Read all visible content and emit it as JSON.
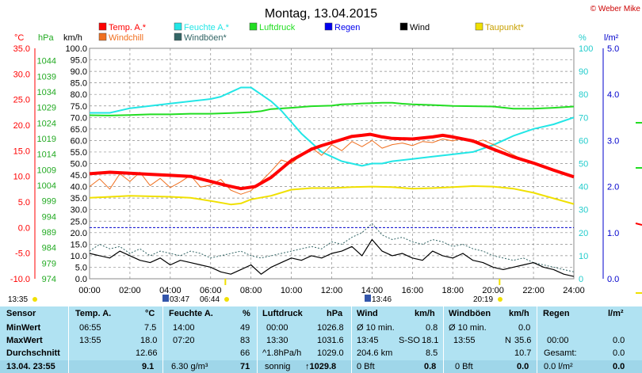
{
  "title": "Montag, 13.04.2015",
  "copyright": "© Weber Mike",
  "legend": [
    {
      "label": "Temp. A.*",
      "color": "#ff0000"
    },
    {
      "label": "Feuchte A.*",
      "color": "#22e6e6"
    },
    {
      "label": "Luftdruck",
      "color": "#22dd22"
    },
    {
      "label": "Regen",
      "color": "#0000ee"
    },
    {
      "label": "Wind",
      "color": "#000000"
    },
    {
      "label": "Taupunkt*",
      "color": "#f0e000"
    },
    {
      "label": "Windchill",
      "color": "#f07020"
    },
    {
      "label": "Windböen*",
      "color": "#336666"
    }
  ],
  "axis_units": {
    "temp": "°C",
    "pressure": "hPa",
    "wind": "km/h",
    "humidity": "%",
    "rain": "l/m²"
  },
  "chart_data": {
    "type": "line",
    "xlim": [
      0,
      24
    ],
    "x_ticks": [
      "00:00",
      "02:00",
      "04:00",
      "06:00",
      "08:00",
      "10:00",
      "12:00",
      "14:00",
      "16:00",
      "18:00",
      "20:00",
      "22:00",
      "24:00"
    ],
    "temp_axis": {
      "ylim": [
        -10,
        35
      ],
      "ticks": [
        "35.0",
        "30.0",
        "25.0",
        "20.0",
        "15.0",
        "10.0",
        "5.0",
        "0.0",
        "-5.0",
        "-10.0"
      ]
    },
    "pressure_axis": {
      "ylim": [
        974,
        1048
      ],
      "ticks": [
        "1044",
        "1039",
        "1034",
        "1029",
        "1024",
        "1019",
        "1014",
        "1009",
        "1004",
        "999",
        "994",
        "989",
        "984",
        "979",
        "974"
      ]
    },
    "wind_axis": {
      "ylim": [
        0,
        100
      ],
      "ticks": [
        "100.0",
        "95.0",
        "90.0",
        "85.0",
        "80.0",
        "75.0",
        "70.0",
        "65.0",
        "60.0",
        "55.0",
        "50.0",
        "45.0",
        "40.0",
        "35.0",
        "30.0",
        "25.0",
        "20.0",
        "15.0",
        "10.0",
        "5.0",
        "0.0"
      ]
    },
    "humidity_axis": {
      "ylim": [
        0,
        100
      ],
      "ticks": [
        "100",
        "90",
        "80",
        "70",
        "60",
        "50",
        "40",
        "30",
        "20",
        "10",
        "0"
      ]
    },
    "rain_axis": {
      "ylim": [
        0,
        5
      ],
      "ticks": [
        "5.0",
        "4.0",
        "3.0",
        "2.0",
        "1.0",
        "0.0"
      ]
    },
    "series": [
      {
        "name": "Temp. A.*",
        "axis": "temp",
        "color": "#ff0000",
        "x": [
          0,
          1,
          2,
          3,
          4,
          5,
          6,
          6.7,
          7.5,
          8.2,
          9,
          10,
          11,
          11.5,
          12,
          12.5,
          13,
          13.5,
          13.9,
          14.5,
          15,
          16,
          17,
          17.5,
          18,
          19,
          20,
          21,
          22,
          23,
          24
        ],
        "y": [
          10.5,
          10.8,
          10.6,
          10.4,
          10.2,
          10.0,
          9.0,
          8.3,
          7.6,
          8.0,
          9.8,
          13.1,
          15.3,
          16.0,
          16.6,
          17.2,
          17.8,
          18.0,
          18.2,
          17.7,
          17.4,
          17.3,
          17.7,
          18.0,
          17.7,
          16.9,
          15.3,
          13.8,
          12.6,
          11.2,
          9.9
        ]
      },
      {
        "name": "Windchill",
        "axis": "temp",
        "color": "#f07020",
        "x": [
          0,
          0.5,
          1,
          1.5,
          2,
          2.5,
          3,
          3.5,
          4,
          4.5,
          5,
          5.5,
          6,
          6.5,
          7,
          7.5,
          8,
          8.5,
          9,
          9.5,
          10,
          10.5,
          11,
          11.5,
          12,
          12.5,
          13,
          13.5,
          14,
          14.5,
          15,
          15.5,
          16,
          16.5,
          17,
          17.5,
          18,
          18.5,
          19,
          19.5,
          20,
          20.5,
          21,
          21.5,
          22
        ],
        "y": [
          8.0,
          9.5,
          7.5,
          10.5,
          9.0,
          10.8,
          8.2,
          9.6,
          7.8,
          8.9,
          10.2,
          7.9,
          8.3,
          9.4,
          7.3,
          6.5,
          7.2,
          9.0,
          11.0,
          13.2,
          12.5,
          14.2,
          15.6,
          14.1,
          16.2,
          15.0,
          16.8,
          15.8,
          17.0,
          15.5,
          16.2,
          16.5,
          16.0,
          16.8,
          16.6,
          17.3,
          16.9,
          17.5,
          16.6,
          17.1,
          16.2,
          15.3,
          14.2,
          13.2,
          12.4
        ]
      },
      {
        "name": "Taupunkt*",
        "axis": "temp",
        "color": "#f0e000",
        "x": [
          0,
          2,
          4,
          5,
          6,
          7,
          7.5,
          8,
          9,
          10,
          11,
          12,
          13,
          14,
          15,
          16,
          17,
          18,
          19,
          20,
          21,
          22,
          23,
          24
        ],
        "y": [
          5.8,
          6.2,
          6.0,
          5.8,
          5.2,
          4.5,
          4.7,
          5.5,
          6.2,
          7.4,
          7.7,
          7.7,
          7.9,
          8.0,
          7.9,
          7.6,
          7.7,
          7.9,
          8.1,
          8.0,
          7.6,
          6.8,
          5.7,
          4.6
        ]
      },
      {
        "name": "Feuchte A.*",
        "axis": "humidity",
        "color": "#22e6e6",
        "x": [
          0,
          1,
          2,
          3,
          4,
          5,
          6,
          6.5,
          7,
          7.5,
          8,
          8.5,
          9,
          9.5,
          10,
          10.5,
          11,
          11.5,
          12,
          12.5,
          13,
          13.5,
          14,
          14.5,
          15,
          16,
          17,
          18,
          19,
          20,
          21,
          22,
          23,
          24
        ],
        "y": [
          72,
          72,
          74,
          75,
          76,
          77,
          78,
          79,
          81,
          83,
          83,
          80,
          77,
          73,
          68,
          63,
          59,
          55,
          53,
          51,
          50,
          49,
          50,
          50,
          51,
          52,
          53,
          54,
          55,
          58,
          62,
          65,
          67,
          70
        ]
      },
      {
        "name": "Luftdruck",
        "axis": "pressure",
        "color": "#22dd22",
        "x": [
          0,
          1,
          2,
          3,
          4,
          5,
          6,
          7,
          8,
          8.5,
          9,
          10,
          11,
          12,
          12.5,
          13,
          13.5,
          14,
          14.5,
          15,
          15.5,
          16,
          17,
          18,
          19,
          20,
          21,
          22,
          23,
          24
        ],
        "y": [
          1026.5,
          1026.4,
          1026.6,
          1026.8,
          1026.8,
          1027.0,
          1027.0,
          1027.2,
          1027.5,
          1027.8,
          1028.5,
          1028.9,
          1029.4,
          1029.6,
          1030.0,
          1030.1,
          1030.3,
          1030.4,
          1030.5,
          1030.5,
          1030.2,
          1030.0,
          1029.8,
          1029.5,
          1029.4,
          1029.3,
          1028.6,
          1028.6,
          1028.9,
          1029.3
        ]
      },
      {
        "name": "Windböen*",
        "axis": "wind",
        "color": "#336666",
        "x": [
          0,
          0.5,
          1,
          1.5,
          2,
          2.5,
          3,
          3.5,
          4,
          4.5,
          5,
          5.5,
          6,
          6.5,
          7,
          7.5,
          8,
          8.5,
          9,
          9.5,
          10,
          10.5,
          11,
          11.5,
          12,
          12.5,
          13,
          13.5,
          14,
          14.5,
          15,
          15.5,
          16,
          16.5,
          17,
          17.5,
          18,
          18.5,
          19,
          19.5,
          20,
          20.5,
          21,
          21.5,
          22,
          22.5,
          23,
          23.5,
          24
        ],
        "y": [
          12,
          15,
          13,
          14,
          11,
          13,
          10,
          12,
          11,
          10,
          12,
          11,
          9,
          10,
          11,
          12,
          10,
          9,
          10,
          11,
          12,
          13,
          14,
          13,
          16,
          15,
          18,
          20,
          24,
          19,
          17,
          18,
          16,
          15,
          17,
          16,
          14,
          15,
          13,
          12,
          10,
          9,
          8,
          9,
          7,
          6,
          5,
          4,
          3
        ]
      },
      {
        "name": "Wind",
        "axis": "wind",
        "color": "#000000",
        "x": [
          0,
          0.5,
          1,
          1.5,
          2,
          2.5,
          3,
          3.5,
          4,
          4.5,
          5,
          5.5,
          6,
          6.5,
          7,
          7.5,
          8,
          8.5,
          9,
          9.5,
          10,
          10.5,
          11,
          11.5,
          12,
          12.5,
          13,
          13.5,
          14,
          14.5,
          15,
          15.5,
          16,
          16.5,
          17,
          17.5,
          18,
          18.5,
          19,
          19.5,
          20,
          20.5,
          21,
          21.5,
          22,
          22.5,
          23,
          23.5,
          24
        ],
        "y": [
          11,
          10,
          9,
          12,
          10,
          8,
          7,
          9,
          6,
          8,
          7,
          6,
          5,
          3,
          2,
          4,
          6,
          2,
          5,
          7,
          9,
          8,
          10,
          9,
          11,
          12,
          14,
          10,
          17,
          12,
          10,
          11,
          9,
          8,
          12,
          10,
          9,
          11,
          8,
          7,
          5,
          4,
          5,
          6,
          7,
          5,
          4,
          2,
          1
        ]
      }
    ],
    "reference_lines": [
      {
        "axis": "temp",
        "value": 0,
        "color": "#0000cc"
      }
    ],
    "grid": true
  },
  "markers": {
    "sunrise": "06:44",
    "sunset": "20:19",
    "moon_time_1": "03:47",
    "moon_time_2": "13:46",
    "left_time": "13:35"
  },
  "stats": {
    "header": {
      "sensor": "Sensor",
      "temp": "Temp. A.",
      "temp_unit": "°C",
      "feuchte": "Feuchte A.",
      "feuchte_unit": "%",
      "luftdruck": "Luftdruck",
      "luftdruck_unit": "hPa",
      "wind": "Wind",
      "wind_unit": "km/h",
      "windboen": "Windböen",
      "windboen_unit": "km/h",
      "regen": "Regen",
      "regen_unit": "l/m²"
    },
    "rows": [
      {
        "label": "MinWert",
        "temp_time": "06:55",
        "temp": "7.5",
        "feuchte_time": "14:00",
        "feuchte": "49",
        "druck_time": "00:00",
        "druck": "1026.8",
        "wind_label": "Ø 10 min.",
        "wind": "0.8",
        "boen_label": "Ø 10 min.",
        "boen": "0.0",
        "regen_label": "",
        "regen": ""
      },
      {
        "label": "MaxWert",
        "temp_time": "13:55",
        "temp": "18.0",
        "feuchte_time": "07:20",
        "feuchte": "83",
        "druck_time": "13:30",
        "druck": "1031.6",
        "wind_label": "13:45",
        "wind_dir": "S-SO",
        "wind": "18.1",
        "boen_label": "13:55",
        "boen_dir": "N",
        "boen": "35.6",
        "regen_label": "00:00",
        "regen": "0.0"
      },
      {
        "label": "Durchschnitt",
        "temp_time": "",
        "temp": "12.66",
        "feuchte_time": "",
        "feuchte": "66",
        "druck_time": "^1.8hPa/h",
        "druck": "1029.0",
        "wind_label": "204.6 km",
        "wind": "8.5",
        "boen_label": "",
        "boen": "10.7",
        "regen_label": "Gesamt:",
        "regen": "0.0"
      },
      {
        "label": "13.04. 23:55",
        "temp_time": "",
        "temp": "9.1",
        "feuchte_time": "6.30 g/m³",
        "feuchte": "71",
        "druck_time": "sonnig",
        "druck": "↑1029.8",
        "wind_label": "0 Bft",
        "wind": "0.8",
        "boen_label": "0 Bft",
        "boen": "0.0",
        "regen_label": "0.0 l/m²",
        "regen": "0.0"
      }
    ]
  }
}
